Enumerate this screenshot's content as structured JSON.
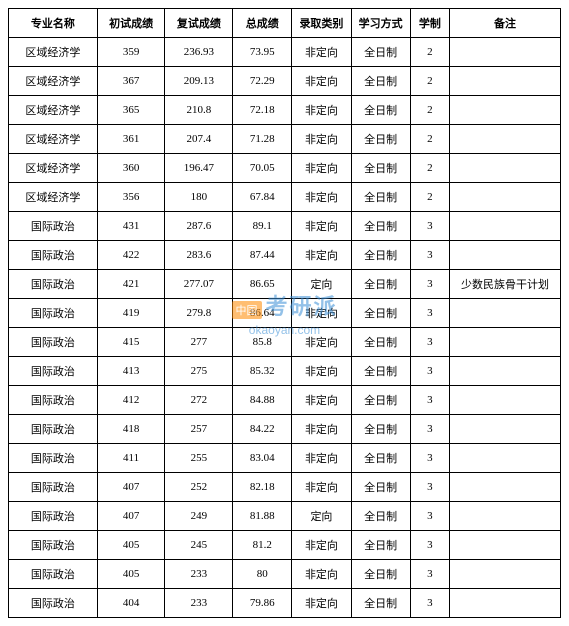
{
  "table": {
    "columns": [
      "专业名称",
      "初试成绩",
      "复试成绩",
      "总成绩",
      "录取类别",
      "学习方式",
      "学制",
      "备注"
    ],
    "column_classes": [
      "col-major",
      "col-prelim",
      "col-interview",
      "col-total",
      "col-category",
      "col-mode",
      "col-duration",
      "col-remark"
    ],
    "rows": [
      [
        "区域经济学",
        "359",
        "236.93",
        "73.95",
        "非定向",
        "全日制",
        "2",
        ""
      ],
      [
        "区域经济学",
        "367",
        "209.13",
        "72.29",
        "非定向",
        "全日制",
        "2",
        ""
      ],
      [
        "区域经济学",
        "365",
        "210.8",
        "72.18",
        "非定向",
        "全日制",
        "2",
        ""
      ],
      [
        "区域经济学",
        "361",
        "207.4",
        "71.28",
        "非定向",
        "全日制",
        "2",
        ""
      ],
      [
        "区域经济学",
        "360",
        "196.47",
        "70.05",
        "非定向",
        "全日制",
        "2",
        ""
      ],
      [
        "区域经济学",
        "356",
        "180",
        "67.84",
        "非定向",
        "全日制",
        "2",
        ""
      ],
      [
        "国际政治",
        "431",
        "287.6",
        "89.1",
        "非定向",
        "全日制",
        "3",
        ""
      ],
      [
        "国际政治",
        "422",
        "283.6",
        "87.44",
        "非定向",
        "全日制",
        "3",
        ""
      ],
      [
        "国际政治",
        "421",
        "277.07",
        "86.65",
        "定向",
        "全日制",
        "3",
        "少数民族骨干计划"
      ],
      [
        "国际政治",
        "419",
        "279.8",
        "86.64",
        "非定向",
        "全日制",
        "3",
        ""
      ],
      [
        "国际政治",
        "415",
        "277",
        "85.8",
        "非定向",
        "全日制",
        "3",
        ""
      ],
      [
        "国际政治",
        "413",
        "275",
        "85.32",
        "非定向",
        "全日制",
        "3",
        ""
      ],
      [
        "国际政治",
        "412",
        "272",
        "84.88",
        "非定向",
        "全日制",
        "3",
        ""
      ],
      [
        "国际政治",
        "418",
        "257",
        "84.22",
        "非定向",
        "全日制",
        "3",
        ""
      ],
      [
        "国际政治",
        "411",
        "255",
        "83.04",
        "非定向",
        "全日制",
        "3",
        ""
      ],
      [
        "国际政治",
        "407",
        "252",
        "82.18",
        "非定向",
        "全日制",
        "3",
        ""
      ],
      [
        "国际政治",
        "407",
        "249",
        "81.88",
        "定向",
        "全日制",
        "3",
        ""
      ],
      [
        "国际政治",
        "405",
        "245",
        "81.2",
        "非定向",
        "全日制",
        "3",
        ""
      ],
      [
        "国际政治",
        "405",
        "233",
        "80",
        "非定向",
        "全日制",
        "3",
        ""
      ],
      [
        "国际政治",
        "404",
        "233",
        "79.86",
        "非定向",
        "全日制",
        "3",
        ""
      ]
    ],
    "border_color": "#000000",
    "background_color": "#ffffff",
    "font_size": 11
  },
  "watermark": {
    "badge": "中国",
    "main": "考研派",
    "url": "okaoyan.com",
    "main_color": "#3b8fd6",
    "badge_bg": "#ff8a00",
    "badge_color": "#ffffff"
  }
}
